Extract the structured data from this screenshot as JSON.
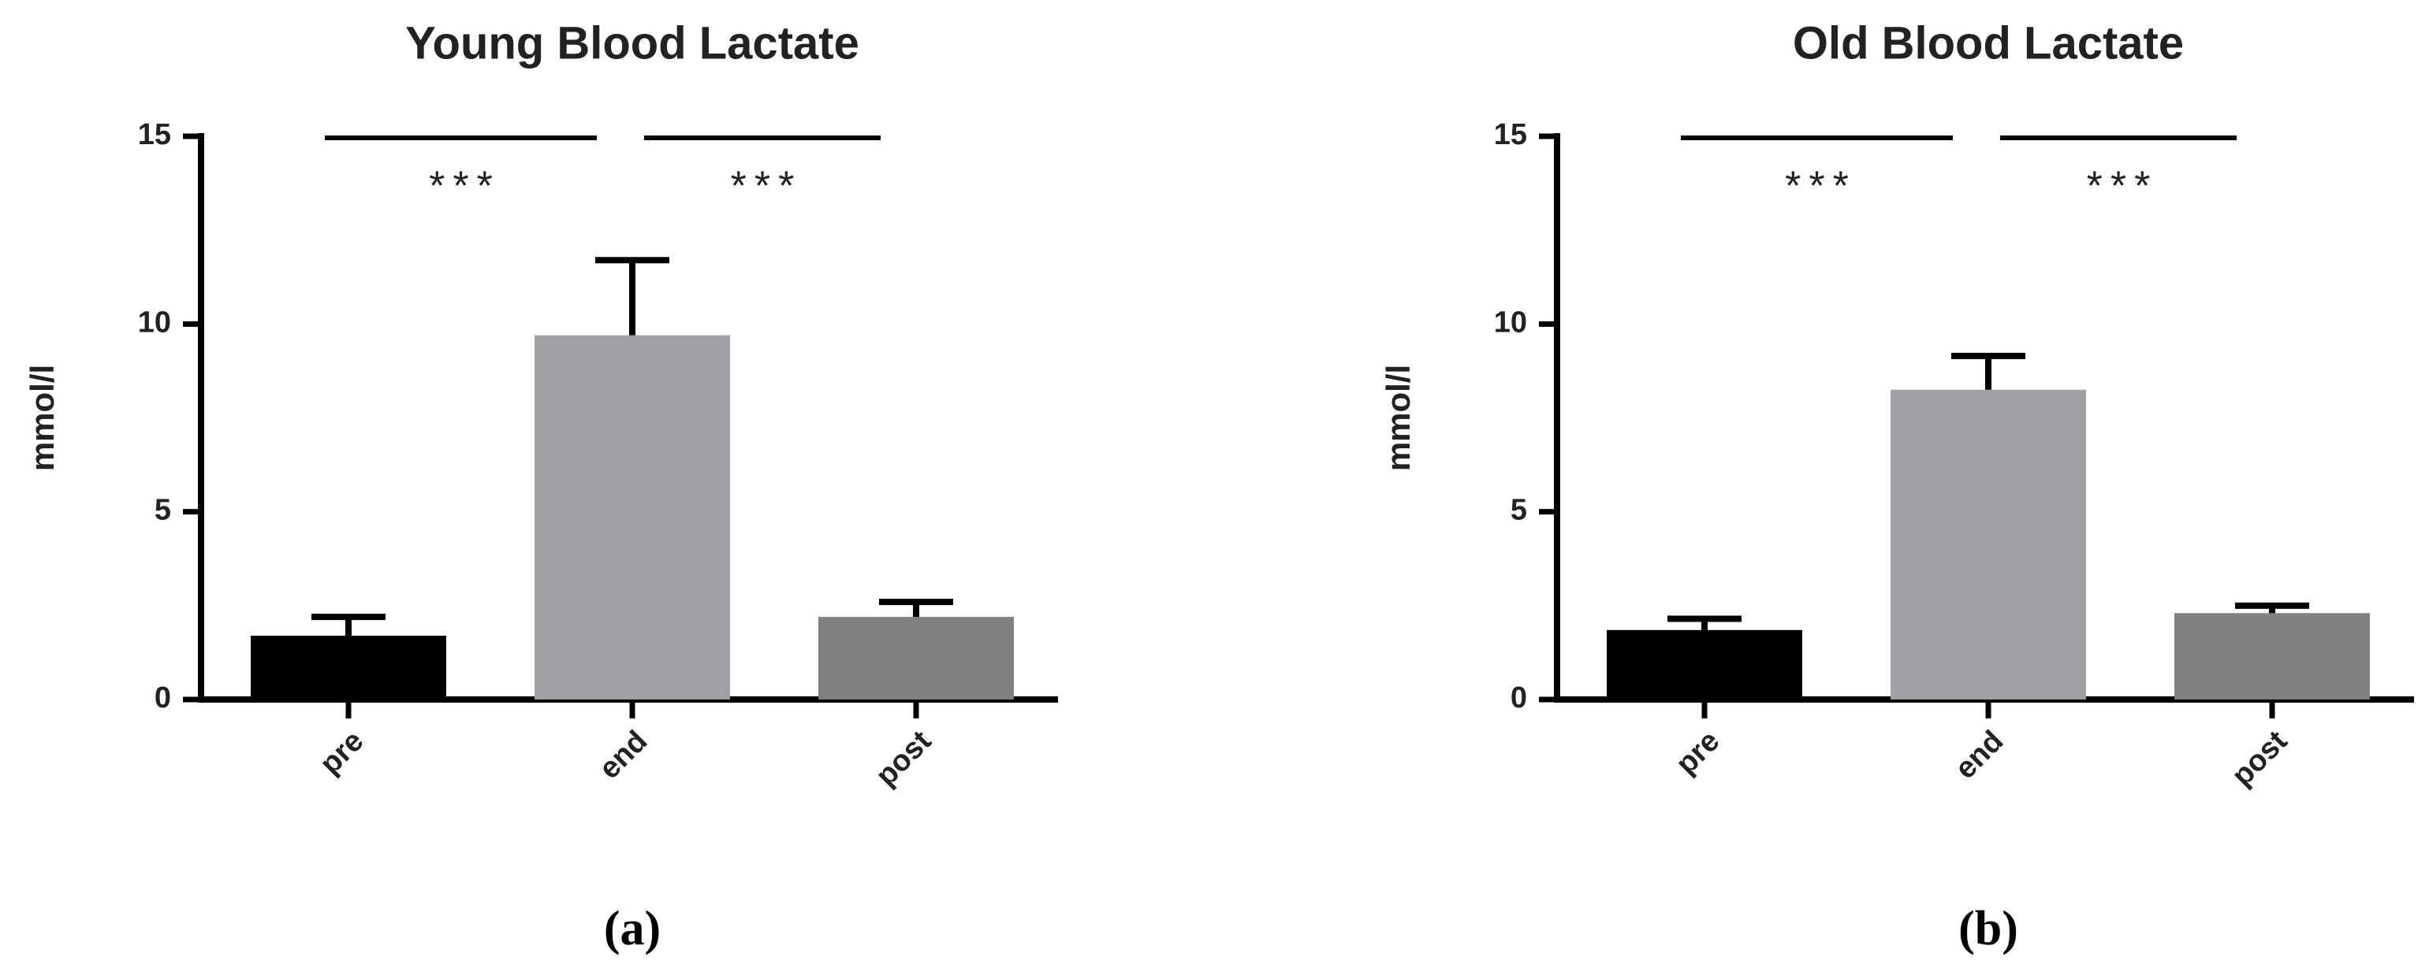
{
  "chart_data": [
    {
      "type": "bar",
      "title": "Young Blood Lactate",
      "ylabel": "mmol/l",
      "panel_label": "(a)",
      "categories": [
        "pre",
        "end",
        "post"
      ],
      "values": [
        1.7,
        9.7,
        2.2
      ],
      "errors": [
        0.5,
        2.0,
        0.4
      ],
      "colors": [
        "#000000",
        "#a0a0a6",
        "#808080"
      ],
      "ylim": [
        0,
        15
      ],
      "yticks": [
        0,
        5,
        10,
        15
      ],
      "annotations": [
        "***",
        "***"
      ]
    },
    {
      "type": "bar",
      "title": "Old Blood Lactate",
      "ylabel": "mmol/l",
      "panel_label": "(b)",
      "categories": [
        "pre",
        "end",
        "post"
      ],
      "values": [
        1.85,
        8.25,
        2.3
      ],
      "errors": [
        0.3,
        0.9,
        0.2
      ],
      "colors": [
        "#000000",
        "#a0a0a6",
        "#808080"
      ],
      "ylim": [
        0,
        15
      ],
      "yticks": [
        0,
        5,
        10,
        15
      ],
      "annotations": [
        "***",
        "***"
      ]
    }
  ]
}
